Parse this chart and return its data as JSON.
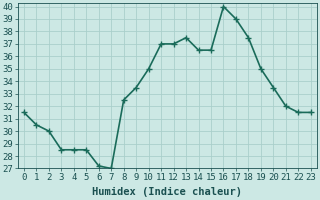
{
  "x": [
    0,
    1,
    2,
    3,
    4,
    5,
    6,
    7,
    8,
    9,
    10,
    11,
    12,
    13,
    14,
    15,
    16,
    17,
    18,
    19,
    20,
    21,
    22,
    23
  ],
  "y": [
    31.5,
    30.5,
    30.0,
    28.5,
    28.5,
    28.5,
    27.2,
    27.0,
    32.5,
    33.5,
    35.0,
    37.0,
    37.0,
    37.5,
    36.5,
    36.5,
    40.0,
    39.0,
    37.5,
    35.0,
    33.5,
    32.0,
    31.5,
    31.5
  ],
  "line_color": "#1a6b5a",
  "marker": "+",
  "marker_size": 4,
  "bg_color": "#cce8e4",
  "grid_color": "#aacfcb",
  "xlabel": "Humidex (Indice chaleur)",
  "ylabel_ticks": [
    27,
    28,
    29,
    30,
    31,
    32,
    33,
    34,
    35,
    36,
    37,
    38,
    39,
    40
  ],
  "ylim": [
    27,
    40.3
  ],
  "xlim": [
    -0.5,
    23.5
  ],
  "line_width": 1.2,
  "font_color": "#1a5050",
  "xlabel_fontsize": 7.5,
  "tick_fontsize": 6.5,
  "marker_edge_width": 1.0
}
